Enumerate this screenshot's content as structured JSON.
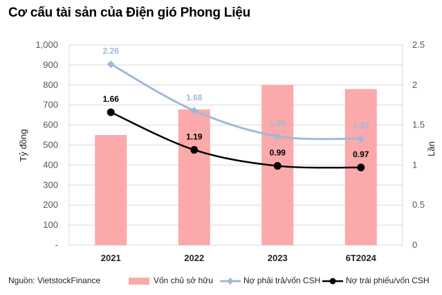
{
  "title": "Cơ cấu tài sản của Điện gió Phong Liệu",
  "source": "Nguồn:  VietstockFinance",
  "colors": {
    "bar": "#fba9aa",
    "line1": "#9fbad7",
    "line2": "#000000",
    "grid": "#d9d9d9"
  },
  "chart_data": {
    "type": "bar",
    "categories": [
      "2021",
      "2022",
      "2023",
      "6T2024"
    ],
    "left_axis": {
      "label": "Tỷ đồng",
      "ylim": [
        0,
        1000
      ],
      "ticks": [
        0,
        100,
        200,
        300,
        400,
        500,
        600,
        700,
        800,
        900,
        1000
      ],
      "tick_labels": [
        "-",
        "100",
        "200",
        "300",
        "400",
        "500",
        "600",
        "700",
        "800",
        "900",
        "1,000"
      ]
    },
    "right_axis": {
      "label": "Lần",
      "ylim": [
        0,
        2.5
      ],
      "ticks": [
        0,
        0.5,
        1,
        1.5,
        2,
        2.5
      ],
      "tick_labels": [
        "0",
        "0.5",
        "1",
        "1.5",
        "2",
        "2.5"
      ]
    },
    "grid": true,
    "legend_position": "bottom",
    "series": [
      {
        "name": "Vốn chủ sở hữu",
        "type": "bar",
        "axis": "left",
        "values": [
          550,
          678,
          800,
          780
        ]
      },
      {
        "name": "Nợ phải trả/vốn CSH",
        "type": "line",
        "axis": "right",
        "values": [
          2.26,
          1.68,
          1.36,
          1.33
        ],
        "labels": [
          "2.26",
          "1.68",
          "1.36",
          "1.33"
        ]
      },
      {
        "name": "Nợ trái phiếu/vốn CSH",
        "type": "line",
        "axis": "right",
        "values": [
          1.66,
          1.19,
          0.99,
          0.97
        ],
        "labels": [
          "1.66",
          "1.19",
          "0.99",
          "0.97"
        ]
      }
    ]
  }
}
